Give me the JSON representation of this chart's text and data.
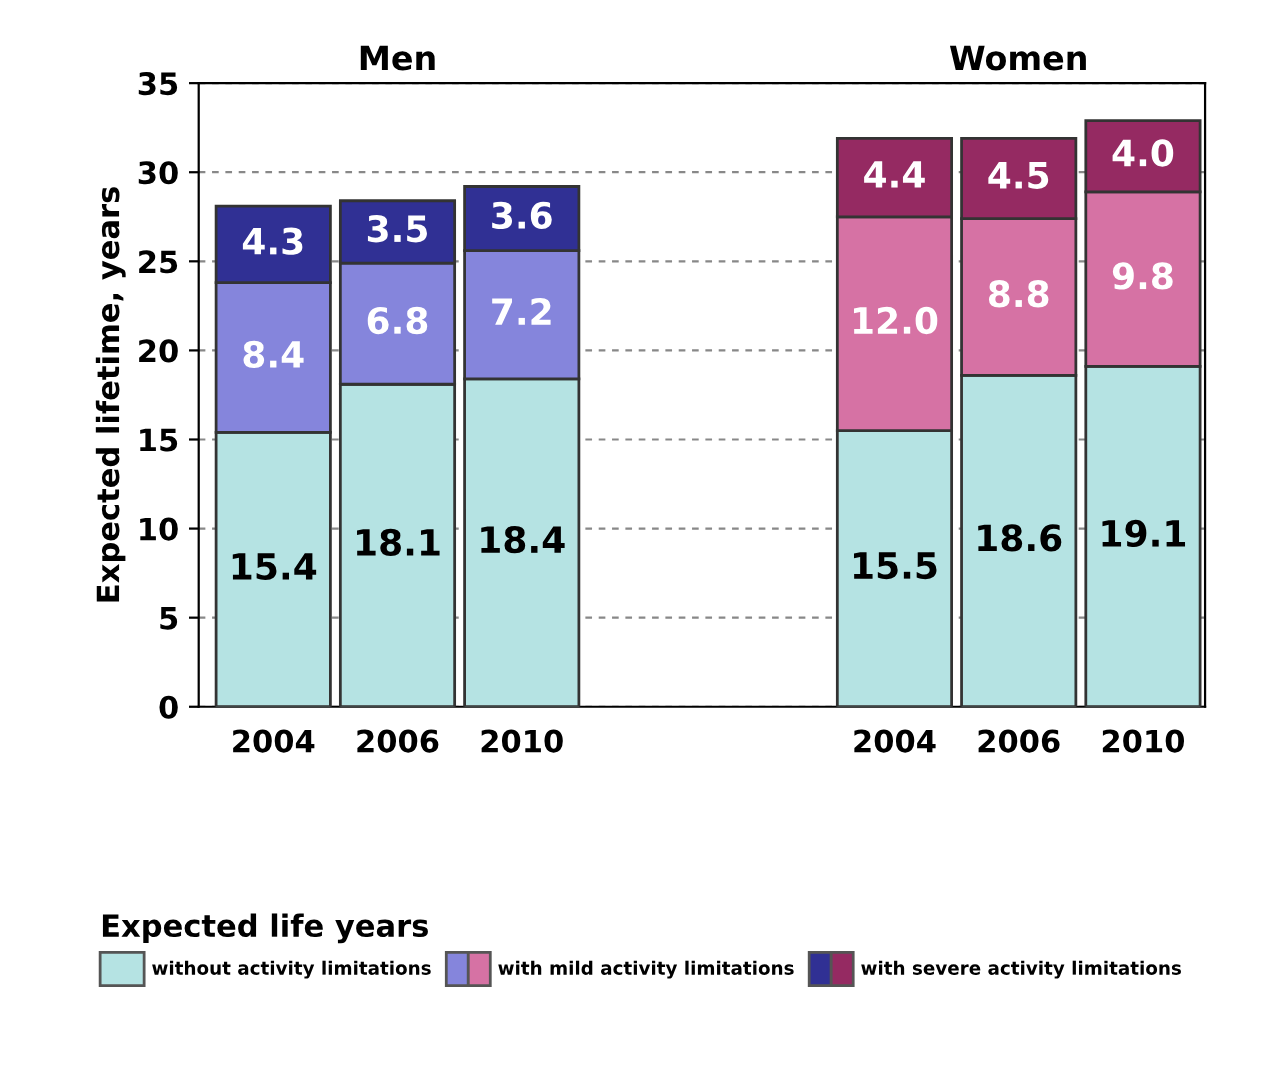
{
  "chart_data": {
    "type": "bar",
    "stacked": true,
    "categories": [
      "2004",
      "2006",
      "2010",
      null,
      null,
      "2004",
      "2006",
      "2010"
    ],
    "series": [
      {
        "name": "without activity limitations",
        "colors": [
          "#b5e3e3",
          "#b5e3e3",
          "#b5e3e3",
          null,
          null,
          "#b5e3e3",
          "#b5e3e3",
          "#b5e3e3"
        ],
        "values": [
          15.4,
          18.1,
          18.4,
          null,
          null,
          15.5,
          18.6,
          19.1
        ],
        "value_labels": [
          "15.4",
          "18.1",
          "18.4",
          null,
          null,
          "15.5",
          "18.6",
          "19.1"
        ]
      },
      {
        "name": "with mild activity limitations",
        "colors": [
          "#8585dc",
          "#8585dc",
          "#8585dc",
          null,
          null,
          "#d672a4",
          "#d672a4",
          "#d672a4"
        ],
        "values": [
          8.4,
          6.8,
          7.2,
          null,
          null,
          12.0,
          8.8,
          9.8
        ],
        "value_labels": [
          "8.4",
          "6.8",
          "7.2",
          null,
          null,
          "12.0",
          "8.8",
          "9.8"
        ]
      },
      {
        "name": "with severe activity limitations",
        "colors": [
          "#303094",
          "#303094",
          "#303094",
          null,
          null,
          "#952a62",
          "#952a62",
          "#952a62"
        ],
        "values": [
          4.3,
          3.5,
          3.6,
          null,
          null,
          4.4,
          4.5,
          4.0
        ],
        "value_labels": [
          "4.3",
          "3.5",
          "3.6",
          null,
          null,
          "4.4",
          "4.5",
          "4.0"
        ]
      }
    ],
    "ylabel": "Expected lifetime, years",
    "ylim": [
      0,
      35
    ],
    "yticks": [
      0,
      5,
      10,
      15,
      20,
      25,
      30,
      35
    ],
    "grid": "y",
    "legend": "bottom",
    "legend_title": "Expected life years",
    "annotations": [
      "Men",
      "Women"
    ]
  }
}
